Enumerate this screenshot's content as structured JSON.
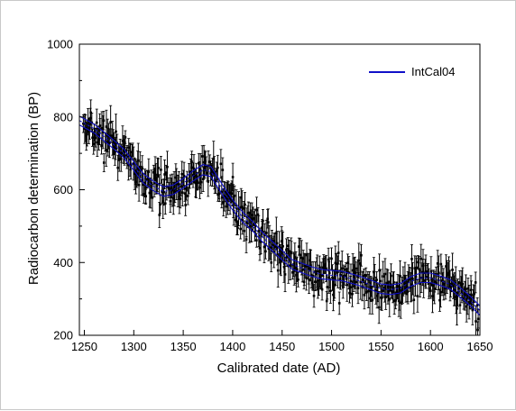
{
  "chart_data": {
    "type": "scatter",
    "xlabel": "Calibrated date (AD)",
    "ylabel": "Radiocarbon determination (BP)",
    "xlim": [
      1245,
      1650
    ],
    "ylim": [
      200,
      1000
    ],
    "xticks": [
      "1250",
      "1300",
      "1350",
      "1400",
      "1450",
      "1500",
      "1550",
      "1600",
      "1650"
    ],
    "yticks": [
      "200",
      "400",
      "600",
      "800",
      "1000"
    ],
    "legend": {
      "label": "IntCal04",
      "position": "top-right"
    },
    "colors": {
      "curve": "#1010c8",
      "data": "#000000",
      "axis": "#000000"
    },
    "series": [
      {
        "name": "IntCal04",
        "style": "line",
        "band": "±1σ",
        "x": [
          1245,
          1260,
          1275,
          1290,
          1300,
          1310,
          1320,
          1330,
          1340,
          1350,
          1360,
          1370,
          1378,
          1385,
          1392,
          1400,
          1410,
          1420,
          1430,
          1440,
          1450,
          1460,
          1470,
          1480,
          1490,
          1500,
          1510,
          1520,
          1530,
          1540,
          1550,
          1560,
          1570,
          1580,
          1590,
          1600,
          1610,
          1620,
          1630,
          1640,
          1650
        ],
        "mean": [
          790,
          768,
          735,
          700,
          665,
          630,
          610,
          595,
          600,
          618,
          638,
          655,
          650,
          620,
          590,
          558,
          525,
          500,
          470,
          445,
          420,
          395,
          385,
          375,
          368,
          365,
          363,
          356,
          348,
          338,
          328,
          325,
          330,
          348,
          358,
          358,
          350,
          340,
          318,
          295,
          268
        ],
        "err": [
          12,
          12,
          12,
          12,
          12,
          13,
          13,
          13,
          13,
          13,
          14,
          14,
          14,
          14,
          14,
          14,
          14,
          13,
          13,
          13,
          13,
          13,
          13,
          13,
          13,
          13,
          13,
          13,
          13,
          13,
          13,
          13,
          13,
          13,
          13,
          13,
          13,
          13,
          13,
          13,
          13
        ]
      },
      {
        "name": "",
        "style": "points with vertical error bars",
        "count": 500,
        "sd": 27,
        "x_range": [
          1249,
          1649
        ],
        "err_range": [
          18,
          48
        ]
      }
    ]
  }
}
